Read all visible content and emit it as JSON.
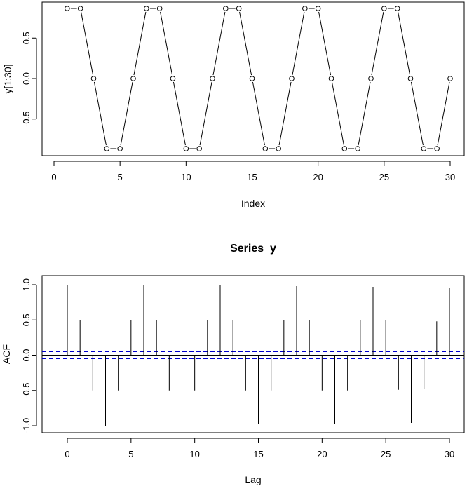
{
  "chart_data": [
    {
      "type": "line",
      "style": "overplotted (lines with open circle points)",
      "title": "",
      "xlabel": "Index",
      "ylabel": "y[1:30]",
      "xlim": [
        0,
        31
      ],
      "ylim": [
        -0.9,
        0.9
      ],
      "x_ticks": [
        0,
        5,
        10,
        15,
        20,
        25,
        30
      ],
      "y_ticks": [
        -0.5,
        0.0,
        0.5
      ],
      "y_tick_labels": [
        "-0.5",
        "0.0",
        "0.5"
      ],
      "x": [
        1,
        2,
        3,
        4,
        5,
        6,
        7,
        8,
        9,
        10,
        11,
        12,
        13,
        14,
        15,
        16,
        17,
        18,
        19,
        20,
        21,
        22,
        23,
        24,
        25,
        26,
        27,
        28,
        29,
        30
      ],
      "y": [
        0.866,
        0.866,
        0,
        -0.866,
        -0.866,
        0,
        0.866,
        0.866,
        0,
        -0.866,
        -0.866,
        0,
        0.866,
        0.866,
        0,
        -0.866,
        -0.866,
        0,
        0.866,
        0.866,
        0,
        -0.866,
        -0.866,
        0,
        0.866,
        0.866,
        0,
        -0.866,
        -0.866,
        0
      ],
      "grid": false,
      "color": "#000000"
    },
    {
      "type": "bar",
      "style": "ACF spike plot",
      "title": "Series  y",
      "xlabel": "Lag",
      "ylabel": "ACF",
      "xlim": [
        -1.2,
        31.2
      ],
      "ylim": [
        -1.0,
        1.0
      ],
      "x_ticks": [
        0,
        5,
        10,
        15,
        20,
        25,
        30
      ],
      "y_ticks": [
        -1.0,
        -0.5,
        0.0,
        0.5,
        1.0
      ],
      "y_tick_labels": [
        "-1.0",
        "-0.5",
        "0.0",
        "0.5",
        "1.0"
      ],
      "lags": [
        0,
        1,
        2,
        3,
        4,
        5,
        6,
        7,
        8,
        9,
        10,
        11,
        12,
        13,
        14,
        15,
        16,
        17,
        18,
        19,
        20,
        21,
        22,
        23,
        24,
        25,
        26,
        27,
        28,
        29,
        30
      ],
      "acf": [
        1.0,
        0.5,
        -0.5,
        -1.0,
        -0.5,
        0.5,
        1.0,
        0.5,
        -0.5,
        -0.99,
        -0.5,
        0.5,
        0.99,
        0.5,
        -0.5,
        -0.98,
        -0.5,
        0.5,
        0.98,
        0.5,
        -0.5,
        -0.97,
        -0.5,
        0.5,
        0.97,
        0.5,
        -0.49,
        -0.96,
        -0.48,
        0.48,
        0.96
      ],
      "confidence_band": 0.05,
      "confidence_color": "#0000cc",
      "zero_line": true,
      "grid": false
    }
  ]
}
